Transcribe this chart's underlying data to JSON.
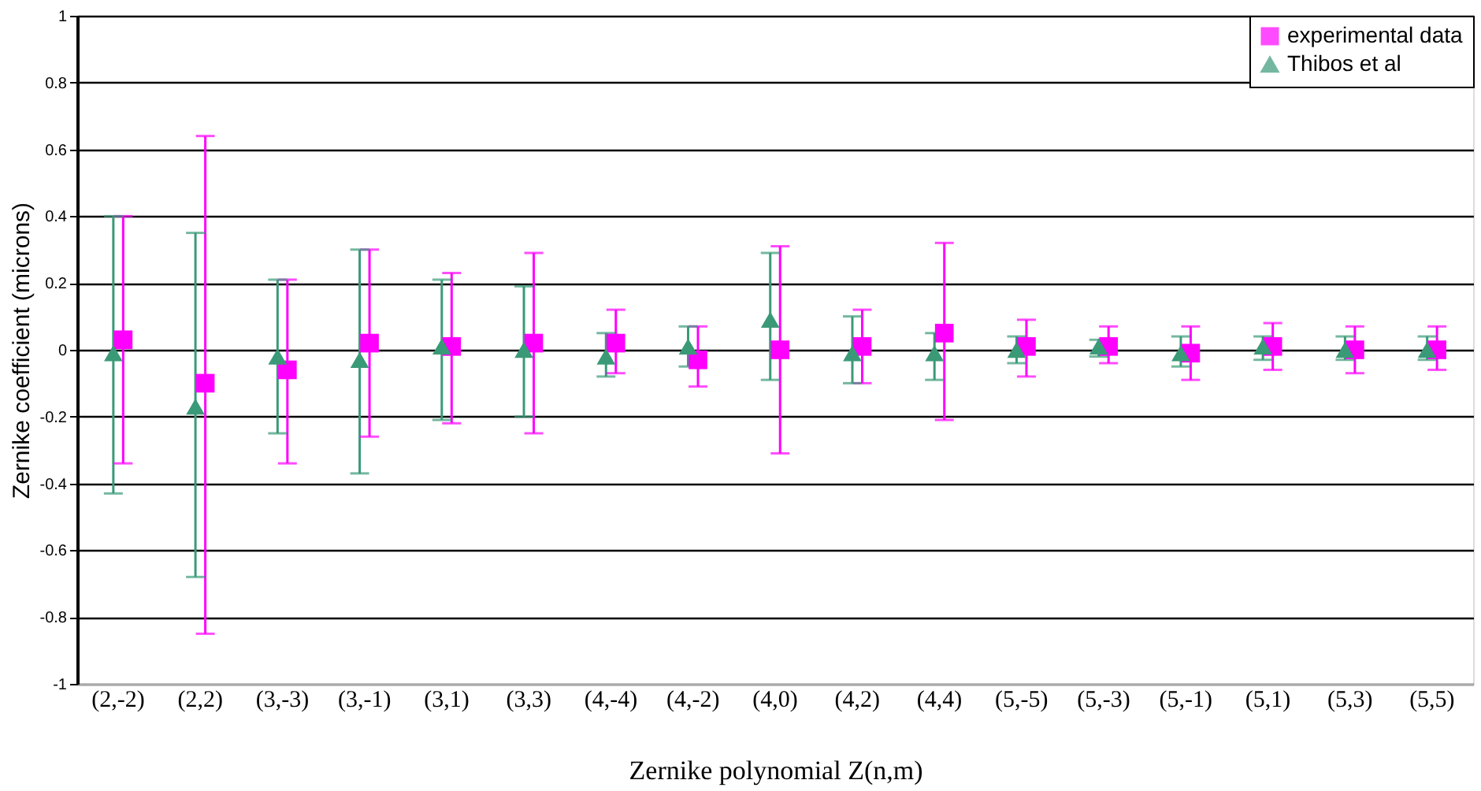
{
  "chart_data": {
    "type": "scatter",
    "xlabel": "Zernike polynomial Z(n,m)",
    "ylabel": "Zernike coefficient (microns)",
    "categories": [
      "(2,-2)",
      "(2,2)",
      "(3,-3)",
      "(3,-1)",
      "(3,1)",
      "(3,3)",
      "(4,-4)",
      "(4,-2)",
      "(4,0)",
      "(4,2)",
      "(4,4)",
      "(5,-5)",
      "(5,-3)",
      "(5,-1)",
      "(5,1)",
      "(5,3)",
      "(5,5)"
    ],
    "series": [
      {
        "name": "experimental data",
        "color": "#ff00ff",
        "marker": "square",
        "values": [
          0.03,
          -0.1,
          -0.06,
          0.02,
          0.01,
          0.02,
          0.02,
          -0.03,
          0.0,
          0.01,
          0.05,
          0.01,
          0.01,
          -0.01,
          0.01,
          0.0,
          0.0
        ],
        "errors": [
          [
            -0.34,
            0.4
          ],
          [
            -0.85,
            0.64
          ],
          [
            -0.34,
            0.21
          ],
          [
            -0.26,
            0.3
          ],
          [
            -0.22,
            0.23
          ],
          [
            -0.25,
            0.29
          ],
          [
            -0.07,
            0.12
          ],
          [
            -0.11,
            0.07
          ],
          [
            -0.31,
            0.31
          ],
          [
            -0.1,
            0.12
          ],
          [
            -0.21,
            0.32
          ],
          [
            -0.08,
            0.09
          ],
          [
            -0.04,
            0.07
          ],
          [
            -0.09,
            0.07
          ],
          [
            -0.06,
            0.08
          ],
          [
            -0.07,
            0.07
          ],
          [
            -0.06,
            0.07
          ]
        ]
      },
      {
        "name": "Thibos et al",
        "color": "#3a9a78",
        "marker": "triangle",
        "values": [
          -0.01,
          -0.17,
          -0.02,
          -0.03,
          0.01,
          0.0,
          -0.02,
          0.01,
          0.09,
          -0.01,
          -0.01,
          0.0,
          0.01,
          -0.01,
          0.01,
          0.0,
          0.0
        ],
        "errors": [
          [
            -0.43,
            0.4
          ],
          [
            -0.68,
            0.35
          ],
          [
            -0.25,
            0.21
          ],
          [
            -0.37,
            0.3
          ],
          [
            -0.21,
            0.21
          ],
          [
            -0.2,
            0.19
          ],
          [
            -0.08,
            0.05
          ],
          [
            -0.05,
            0.07
          ],
          [
            -0.09,
            0.29
          ],
          [
            -0.1,
            0.1
          ],
          [
            -0.09,
            0.05
          ],
          [
            -0.04,
            0.04
          ],
          [
            -0.02,
            0.03
          ],
          [
            -0.05,
            0.04
          ],
          [
            -0.03,
            0.04
          ],
          [
            -0.03,
            0.04
          ],
          [
            -0.03,
            0.04
          ]
        ]
      }
    ],
    "ylim": [
      -1,
      1
    ],
    "yticks": [
      -1,
      -0.8,
      -0.6,
      -0.4,
      -0.2,
      0,
      0.2,
      0.4,
      0.6,
      0.8,
      1
    ],
    "grid": "y",
    "legend": "top right"
  }
}
